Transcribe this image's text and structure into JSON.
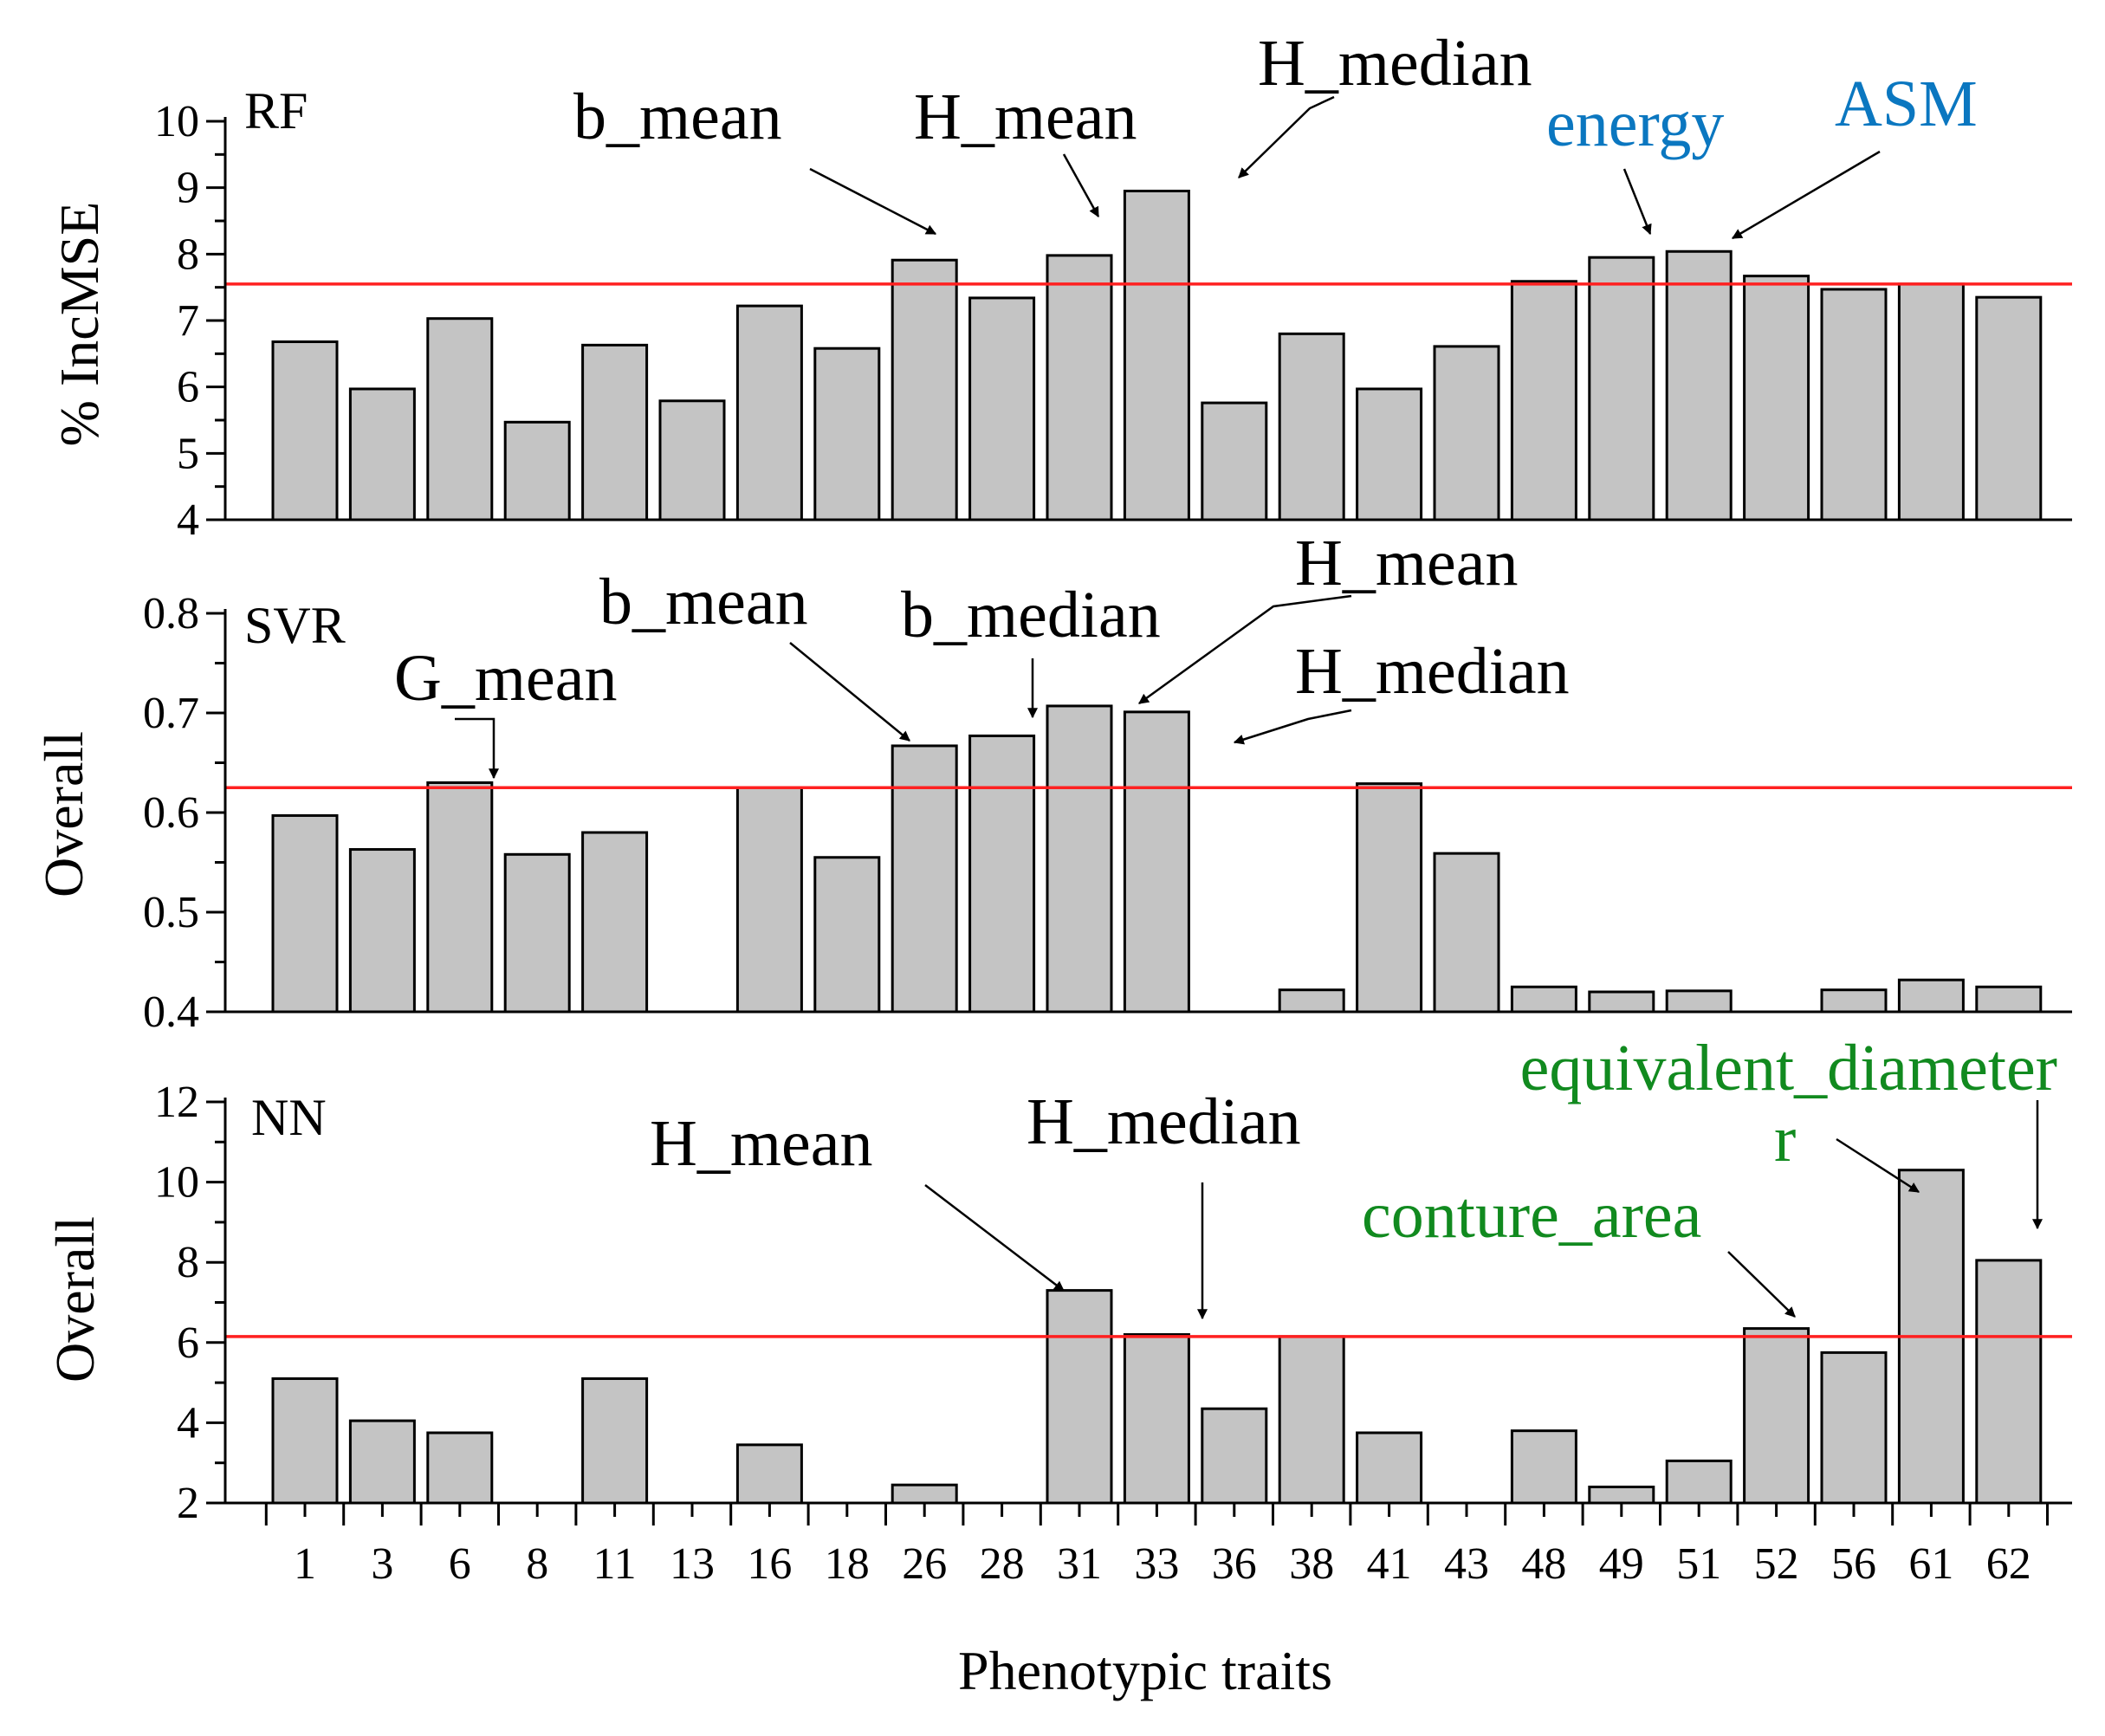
{
  "chart_data": {
    "type": "bar",
    "xlabel": "Phenotypic traits",
    "categories": [
      "1",
      "3",
      "6",
      "8",
      "11",
      "13",
      "16",
      "18",
      "26",
      "28",
      "31",
      "33",
      "36",
      "38",
      "41",
      "43",
      "48",
      "49",
      "51",
      "52",
      "56",
      "61",
      "62"
    ],
    "colors": {
      "bar": "#c4c4c4",
      "reference_line": "#ff2020",
      "blue_label": "#0b77c0",
      "green_label": "#118a1f"
    },
    "panels": [
      {
        "label": "RF",
        "ylabel": "% IncMSE",
        "ylim": [
          4,
          10
        ],
        "yticks": [
          4,
          5,
          6,
          7,
          8,
          9,
          10
        ],
        "tick_decimals": 0,
        "reference_line": 7.55,
        "values": [
          6.68,
          5.97,
          7.03,
          5.47,
          6.63,
          5.79,
          7.22,
          6.58,
          7.91,
          7.34,
          7.98,
          8.95,
          5.76,
          6.8,
          5.97,
          6.61,
          7.59,
          7.95,
          8.04,
          7.67,
          7.47,
          7.55,
          7.35
        ],
        "annotations": [
          {
            "text": "b_mean",
            "color": "black"
          },
          {
            "text": "H_mean",
            "color": "black"
          },
          {
            "text": "H_median",
            "color": "black"
          },
          {
            "text": "energy",
            "color": "blue"
          },
          {
            "text": "ASM",
            "color": "blue"
          }
        ]
      },
      {
        "label": "SVR",
        "ylabel": "Overall",
        "ylim": [
          0.4,
          0.8
        ],
        "yticks": [
          0.4,
          0.5,
          0.6,
          0.7,
          0.8
        ],
        "tick_decimals": 1,
        "reference_line": 0.625,
        "values": [
          0.597,
          0.563,
          0.63,
          0.558,
          0.58,
          null,
          0.625,
          0.555,
          0.667,
          0.677,
          0.707,
          0.701,
          null,
          0.422,
          0.629,
          0.559,
          0.425,
          0.42,
          0.421,
          null,
          0.422,
          0.432,
          0.425
        ],
        "annotations": [
          {
            "text": "G_mean",
            "color": "black"
          },
          {
            "text": "b_mean",
            "color": "black"
          },
          {
            "text": "b_median",
            "color": "black"
          },
          {
            "text": "H_mean",
            "color": "black"
          },
          {
            "text": "H_median",
            "color": "black"
          }
        ]
      },
      {
        "label": "NN",
        "ylabel": "Overall",
        "ylim": [
          2,
          12
        ],
        "yticks": [
          2,
          4,
          6,
          8,
          10,
          12
        ],
        "tick_decimals": 0,
        "reference_line": 6.15,
        "values": [
          5.1,
          4.05,
          3.75,
          null,
          5.1,
          null,
          3.45,
          null,
          2.45,
          null,
          7.3,
          6.2,
          4.35,
          6.15,
          3.75,
          null,
          3.8,
          2.4,
          3.05,
          6.35,
          5.75,
          10.3,
          8.05
        ],
        "annotations": [
          {
            "text": "H_mean",
            "color": "black"
          },
          {
            "text": "H_median",
            "color": "black"
          },
          {
            "text": "conture_area",
            "color": "green"
          },
          {
            "text": "equivalent_diameter",
            "color": "green"
          },
          {
            "text": "r",
            "color": "green"
          }
        ]
      }
    ]
  }
}
